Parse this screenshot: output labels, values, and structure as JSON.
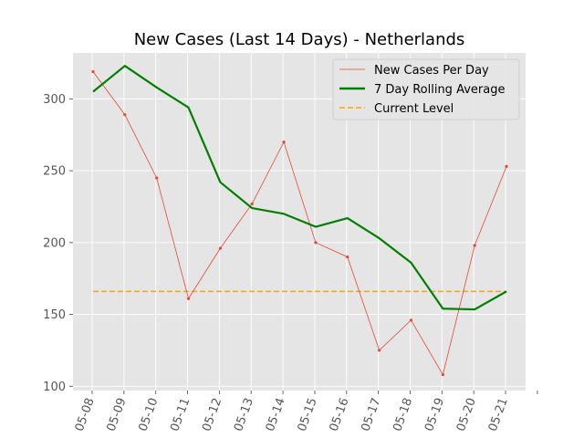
{
  "chart_data": {
    "type": "line",
    "title": "New Cases (Last 14 Days) - Netherlands",
    "xlabel": "",
    "ylabel": "",
    "x_ticks": [
      "05-08",
      "05-09",
      "05-10",
      "05-11",
      "05-12",
      "05-13",
      "05-14",
      "05-15",
      "05-16",
      "05-17",
      "05-18",
      "05-19",
      "05-20",
      "05-21"
    ],
    "y_ticks": [
      100,
      150,
      200,
      250,
      300
    ],
    "ylim": [
      97,
      332
    ],
    "grid": true,
    "legend_position": "top-right",
    "series": [
      {
        "name": "New Cases Per Day",
        "style": "thin-line-with-markers",
        "color": "#E24A33",
        "values": [
          {
            "x": "05-08",
            "y": 319
          },
          {
            "x": "05-09",
            "y": 289
          },
          {
            "x": "05-10",
            "y": 245
          },
          {
            "x": "05-11",
            "y": 161
          },
          {
            "x": "05-12",
            "y": 196
          },
          {
            "x": "05-13",
            "y": 227
          },
          {
            "x": "05-14",
            "y": 270
          },
          {
            "x": "05-15",
            "y": 200
          },
          {
            "x": "05-16",
            "y": 190
          },
          {
            "x": "05-17",
            "y": 125
          },
          {
            "x": "05-18",
            "y": 146
          },
          {
            "x": "05-19",
            "y": 108
          },
          {
            "x": "05-20",
            "y": 198
          },
          {
            "x": "05-21",
            "y": 253
          }
        ]
      },
      {
        "name": "7 Day Rolling Average",
        "style": "thick-line",
        "color": "#008000",
        "values": [
          {
            "x": "05-08",
            "y": 305
          },
          {
            "x": "05-09",
            "y": 323
          },
          {
            "x": "05-10",
            "y": 308
          },
          {
            "x": "05-11",
            "y": 294
          },
          {
            "x": "05-12",
            "y": 242
          },
          {
            "x": "05-13",
            "y": 224
          },
          {
            "x": "05-14",
            "y": 220
          },
          {
            "x": "05-15",
            "y": 211
          },
          {
            "x": "05-16",
            "y": 217
          },
          {
            "x": "05-17",
            "y": 203
          },
          {
            "x": "05-18",
            "y": 186
          },
          {
            "x": "05-19",
            "y": 154
          },
          {
            "x": "05-20",
            "y": 153.5
          },
          {
            "x": "05-21",
            "y": 166
          }
        ]
      },
      {
        "name": "Current Level",
        "style": "dashed-line",
        "color": "#FFA500",
        "values": [
          {
            "x": "05-08",
            "y": 166
          },
          {
            "x": "05-21",
            "y": 166
          }
        ]
      }
    ]
  }
}
